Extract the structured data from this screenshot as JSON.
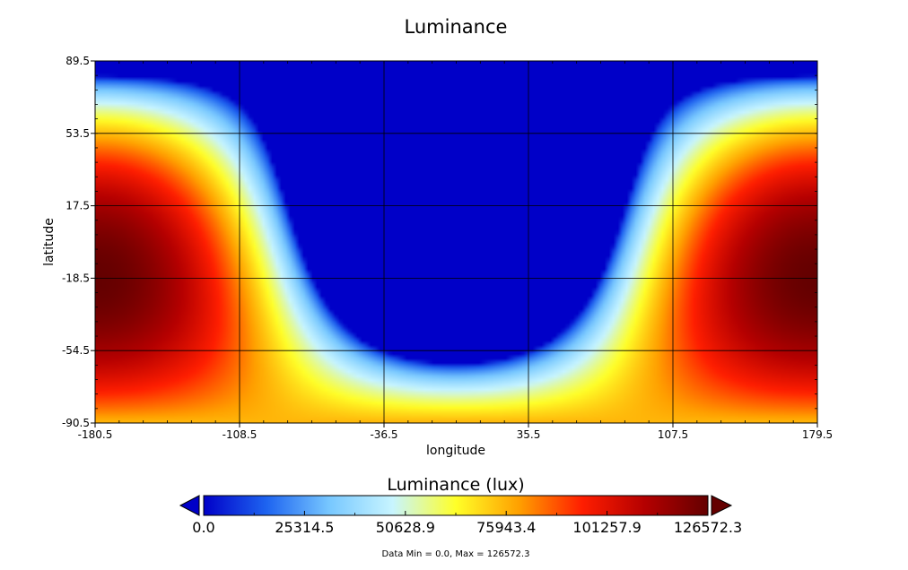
{
  "chart_data": {
    "type": "heatmap",
    "title": "Luminance",
    "xlabel": "longitude",
    "ylabel": "latitude",
    "xlim": [
      -180.5,
      179.5
    ],
    "ylim": [
      -90.5,
      89.5
    ],
    "xticks": [
      "-180.5",
      "-108.5",
      "-36.5",
      "35.5",
      "107.5",
      "179.5"
    ],
    "yticks": [
      "89.5",
      "53.5",
      "17.5",
      "-18.5",
      "-54.5",
      "-90.5"
    ],
    "grid": true,
    "field": {
      "description": "daylight illuminance centered near longitude 179.5, latitude -18.5; night side has 0 lux",
      "peak_value": 126572.3,
      "peak_lon": 179.5,
      "peak_lat": -18.5
    },
    "colorbar": {
      "label": "Luminance (lux)",
      "min": 0.0,
      "max": 126572.3,
      "ticks": [
        "0.0",
        "25314.5",
        "50628.9",
        "75943.4",
        "101257.9",
        "126572.3"
      ],
      "colormap": [
        "#0000c8",
        "#1e64f0",
        "#78c8ff",
        "#c8f5ff",
        "#ffff28",
        "#ffa000",
        "#ff1e00",
        "#b40000",
        "#640000"
      ]
    },
    "data_min": 0.0,
    "data_max": 126572.3,
    "footer": "Data Min = 0.0, Max = 126572.3"
  }
}
